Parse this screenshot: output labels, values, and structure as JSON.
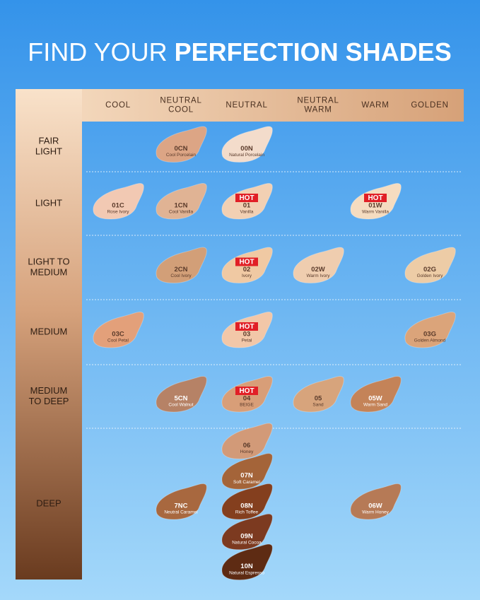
{
  "header": {
    "title_light": "FIND YOUR",
    "title_bold": "PERFECTION SHADES"
  },
  "columns": [
    [
      "COOL"
    ],
    [
      "NEUTRAL",
      "COOL"
    ],
    [
      "NEUTRAL"
    ],
    [
      "NEUTRAL",
      "WARM"
    ],
    [
      "WARM"
    ],
    [
      "GOLDEN"
    ]
  ],
  "rows": [
    {
      "label": [
        "FAIR",
        "LIGHT"
      ],
      "cells": [
        [],
        [
          {
            "code": "0CN",
            "name": "Cool Porcelain",
            "color": "#dca585"
          }
        ],
        [
          {
            "code": "00N",
            "name": "Natural Porcelain",
            "color": "#f3dccb"
          }
        ],
        [],
        [],
        []
      ]
    },
    {
      "label": [
        "LIGHT"
      ],
      "cells": [
        [
          {
            "code": "01C",
            "name": "Rose Ivory",
            "color": "#f2c9b3"
          }
        ],
        [
          {
            "code": "1CN",
            "name": "Cool Vanilla",
            "color": "#e0b394"
          }
        ],
        [
          {
            "badge": "HOT",
            "code": "01",
            "name": "Vanilla",
            "color": "#f2d0b3"
          }
        ],
        [],
        [
          {
            "badge": "HOT",
            "code": "01W",
            "name": "Warm Vanilla",
            "color": "#f5dcc0"
          }
        ],
        []
      ]
    },
    {
      "label": [
        "LIGHT TO",
        "MEDIUM"
      ],
      "cells": [
        [],
        [
          {
            "code": "2CN",
            "name": "Cool Ivory",
            "color": "#d29f78"
          }
        ],
        [
          {
            "badge": "HOT",
            "code": "02",
            "name": "Ivory",
            "color": "#f0c9a3"
          }
        ],
        [
          {
            "code": "02W",
            "name": "Warm Ivory",
            "color": "#efcdaf"
          }
        ],
        [],
        [
          {
            "code": "02G",
            "name": "Golden Ivory",
            "color": "#edcca6"
          }
        ]
      ]
    },
    {
      "label": [
        "MEDIUM"
      ],
      "cells": [
        [
          {
            "code": "03C",
            "name": "Cool Petal",
            "color": "#e3a07a"
          }
        ],
        [],
        [
          {
            "badge": "HOT",
            "code": "03",
            "name": "Petal",
            "color": "#f2c7a8"
          }
        ],
        [],
        [],
        [
          {
            "code": "03G",
            "name": "Golden Almond",
            "color": "#dba47a"
          }
        ]
      ]
    },
    {
      "label": [
        "MEDIUM",
        "TO DEEP"
      ],
      "cells": [
        [],
        [
          {
            "code": "5CN",
            "name": "Cool Walnut",
            "color": "#b68266"
          }
        ],
        [
          {
            "badge": "HOT",
            "code": "04",
            "name": "BEIGE",
            "color": "#d89e78"
          }
        ],
        [
          {
            "code": "05",
            "name": "Sand",
            "color": "#d7a47c"
          }
        ],
        [
          {
            "code": "05W",
            "name": "Warm Sand",
            "color": "#c48358"
          }
        ],
        []
      ]
    },
    {
      "label": [
        "DEEP"
      ],
      "cells": [
        [],
        [
          {
            "code": "7NC",
            "name": "Neutral Caramel",
            "color": "#a8683f"
          }
        ],
        [
          {
            "code": "06",
            "name": "Honey",
            "color": "#d29a78"
          },
          {
            "code": "07N",
            "name": "Soft Caramel",
            "color": "#a46439"
          },
          {
            "code": "08N",
            "name": "Rich Toffee",
            "color": "#843f1e"
          },
          {
            "code": "09N",
            "name": "Natural Cocoa",
            "color": "#7c3a20"
          },
          {
            "code": "10N",
            "name": "Natural Espresso",
            "color": "#5e2b13"
          }
        ],
        [],
        [
          {
            "code": "06W",
            "name": "Warm Honey",
            "color": "#b67a56"
          }
        ],
        []
      ]
    }
  ]
}
